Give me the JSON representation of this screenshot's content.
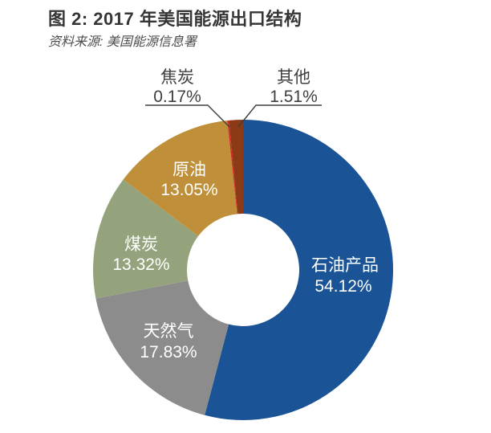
{
  "header": {
    "title": "图 2: 2017 年美国能源出口结构",
    "source": "资料来源: 美国能源信息署"
  },
  "chart_data": {
    "type": "pie",
    "subtype": "donut",
    "title": "2017 年美国能源出口结构",
    "direction": "clockwise",
    "start_angle_deg": 0,
    "legend_position": "none",
    "slices": [
      {
        "name": "petroleum-products",
        "label": "石油产品",
        "value": 54.12,
        "pct_label": "54.12%",
        "color": "#1a5497",
        "label_placement": "inside"
      },
      {
        "name": "natural-gas",
        "label": "天然气",
        "value": 17.83,
        "pct_label": "17.83%",
        "color": "#8c8c8c",
        "label_placement": "inside"
      },
      {
        "name": "coal",
        "label": "煤炭",
        "value": 13.32,
        "pct_label": "13.32%",
        "color": "#95a37d",
        "label_placement": "inside"
      },
      {
        "name": "crude-oil",
        "label": "原油",
        "value": 13.05,
        "pct_label": "13.05%",
        "color": "#bf9039",
        "label_placement": "inside"
      },
      {
        "name": "coke",
        "label": "焦炭",
        "value": 0.17,
        "pct_label": "0.17%",
        "color": "#d62a26",
        "label_placement": "outside"
      },
      {
        "name": "other",
        "label": "其他",
        "value": 1.51,
        "pct_label": "1.51%",
        "color": "#8b3a15",
        "label_placement": "outside"
      }
    ]
  }
}
